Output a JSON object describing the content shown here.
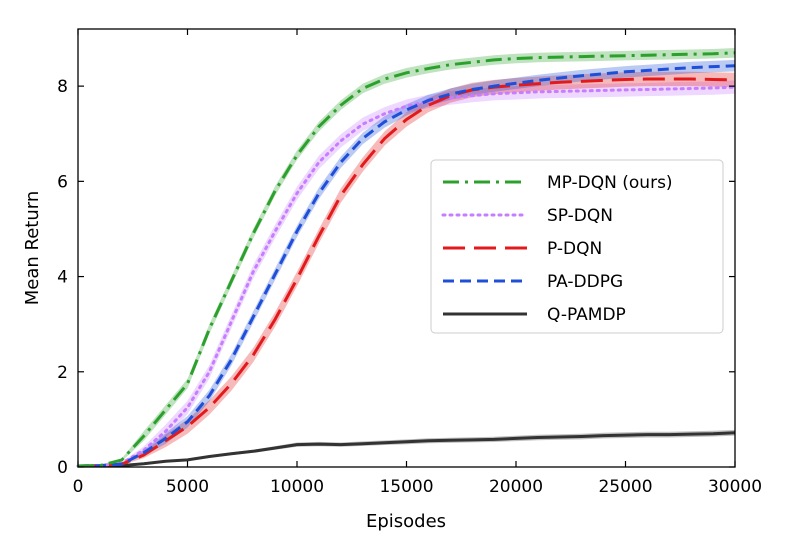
{
  "chart_data": {
    "type": "line",
    "title": "",
    "xlabel": "Episodes",
    "ylabel": "Mean Return",
    "xlim": [
      0,
      30000
    ],
    "ylim": [
      0,
      9.2
    ],
    "xticks": [
      0,
      5000,
      10000,
      15000,
      20000,
      25000,
      30000
    ],
    "xtick_labels": [
      "0",
      "5000",
      "10000",
      "15000",
      "20000",
      "25000",
      "30000"
    ],
    "yticks": [
      0,
      2,
      4,
      6,
      8
    ],
    "ytick_labels": [
      "0",
      "2",
      "4",
      "6",
      "8"
    ],
    "grid": false,
    "legend_position": "center-right",
    "x": [
      0,
      1000,
      2000,
      3000,
      4000,
      5000,
      6000,
      7000,
      8000,
      9000,
      10000,
      11000,
      12000,
      13000,
      14000,
      15000,
      16000,
      17000,
      18000,
      19000,
      20000,
      21000,
      22000,
      23000,
      24000,
      25000,
      26000,
      27000,
      28000,
      29000,
      30000
    ],
    "series": [
      {
        "name": "MP-DQN (ours)",
        "color": "#2ca02c",
        "style": "dashdot",
        "values": [
          0.02,
          0.03,
          0.15,
          0.65,
          1.2,
          1.75,
          2.9,
          3.9,
          4.9,
          5.8,
          6.55,
          7.15,
          7.6,
          7.95,
          8.15,
          8.28,
          8.37,
          8.45,
          8.5,
          8.55,
          8.58,
          8.6,
          8.61,
          8.62,
          8.63,
          8.64,
          8.65,
          8.66,
          8.67,
          8.68,
          8.7
        ],
        "band": 0.1
      },
      {
        "name": "SP-DQN",
        "color": "#c77dff",
        "style": "dotted",
        "values": [
          0.02,
          0.03,
          0.08,
          0.35,
          0.75,
          1.25,
          2.0,
          3.05,
          4.1,
          4.95,
          5.75,
          6.4,
          6.85,
          7.2,
          7.42,
          7.58,
          7.68,
          7.75,
          7.8,
          7.84,
          7.86,
          7.88,
          7.89,
          7.9,
          7.91,
          7.92,
          7.93,
          7.94,
          7.95,
          7.96,
          7.98
        ],
        "band": 0.14
      },
      {
        "name": "P-DQN",
        "color": "#e31a1c",
        "style": "dashed-long",
        "values": [
          0.02,
          0.03,
          0.06,
          0.25,
          0.55,
          0.85,
          1.25,
          1.75,
          2.35,
          3.1,
          3.95,
          4.85,
          5.7,
          6.35,
          6.9,
          7.3,
          7.6,
          7.8,
          7.92,
          7.98,
          8.02,
          8.05,
          8.08,
          8.1,
          8.12,
          8.14,
          8.15,
          8.15,
          8.15,
          8.14,
          8.13
        ],
        "band": 0.15
      },
      {
        "name": "PA-DDPG",
        "color": "#1f4fd8",
        "style": "dashed",
        "values": [
          0.02,
          0.03,
          0.06,
          0.3,
          0.6,
          0.95,
          1.5,
          2.25,
          3.15,
          4.05,
          4.95,
          5.75,
          6.4,
          6.9,
          7.25,
          7.5,
          7.7,
          7.83,
          7.93,
          8.0,
          8.06,
          8.12,
          8.17,
          8.22,
          8.26,
          8.3,
          8.33,
          8.36,
          8.39,
          8.41,
          8.43
        ],
        "band": 0.12
      },
      {
        "name": "Q-PAMDP",
        "color": "#333333",
        "style": "solid",
        "values": [
          0.02,
          0.02,
          0.03,
          0.07,
          0.12,
          0.15,
          0.22,
          0.28,
          0.33,
          0.4,
          0.47,
          0.48,
          0.47,
          0.49,
          0.51,
          0.53,
          0.55,
          0.56,
          0.57,
          0.58,
          0.6,
          0.62,
          0.63,
          0.64,
          0.66,
          0.67,
          0.68,
          0.68,
          0.69,
          0.7,
          0.72
        ],
        "band": 0.06
      }
    ]
  }
}
